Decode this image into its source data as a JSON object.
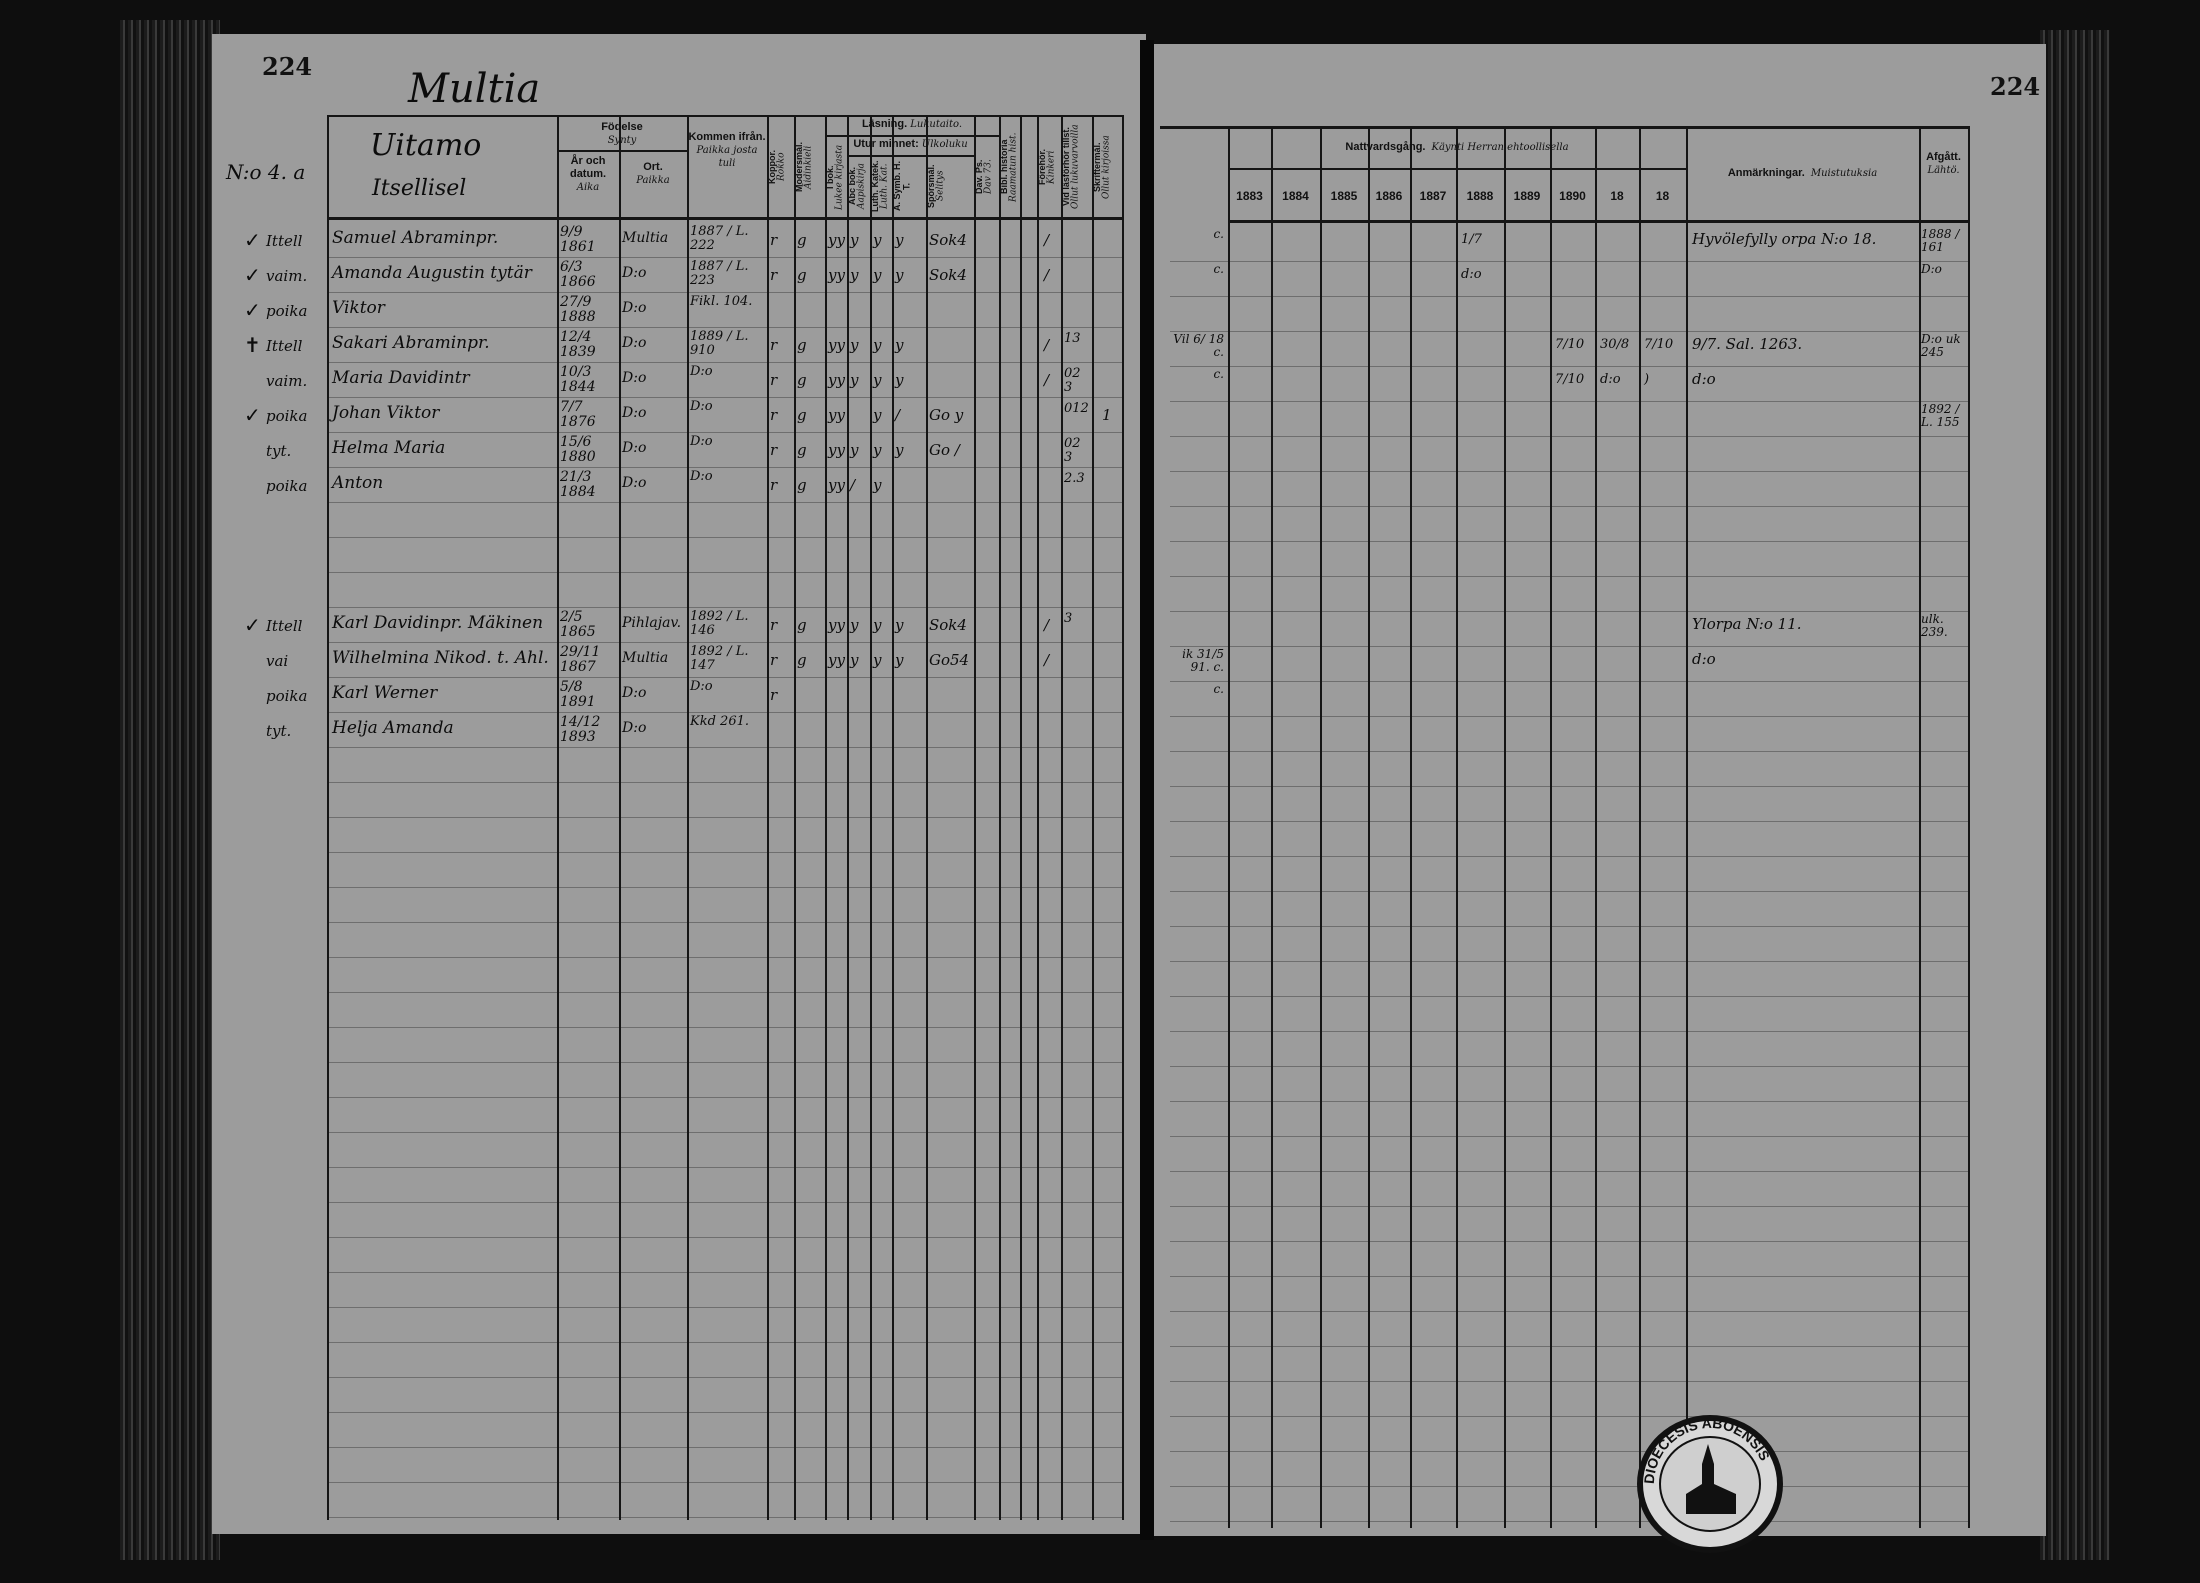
{
  "left_page": {
    "page_number": "224",
    "parish": "Multia",
    "household_number": "N:o 4. a",
    "village": "Uitamo",
    "category": "Itsellisel",
    "headers": {
      "birth": "Födelse",
      "birth_fi": "Synty",
      "date": "År och datum.",
      "date_fi": "Aika",
      "place": "Ort.",
      "place_fi": "Paikka",
      "came_from": "Kommen ifrån.",
      "came_from_fi": "Paikka josta tuli",
      "smallpox": "Koppor.",
      "smallpox_fi": "Rokko",
      "mother_tongue": "Modersmål.",
      "mother_tongue_fi": "Äidinkieli",
      "reading": "Läsning.",
      "reading_fi": "Lukutaito.",
      "from_book": "I bok.",
      "from_book_fi": "Lukee kirjasta",
      "by_heart": "Utur minnet:",
      "by_heart_fi": "Ulkoluku",
      "abc": "Abc bok.",
      "abc_fi": "Aapiskirja",
      "catechism": "Luth. Katek.",
      "catechism_fi": "Luth. Kat.",
      "symb": "A. Symb. H. T.",
      "questions": "Spörsmål.",
      "questions_fi": "Selitys",
      "psalm": "Dav. Ps.",
      "psalm_fi": "Dav 73.",
      "bible_history": "Bibl. historia",
      "bible_history_fi": "Raamatun hist.",
      "examination": "Förehör.",
      "examination_fi": "Kinkeri",
      "admitted": "Vid läsförhör tillst.",
      "admitted_fi": "Ollut lukuvarvoilla",
      "confession": "Skriftermål.",
      "confession_fi": "Ollut kirjoissa"
    },
    "families": [
      [
        {
          "mark": "✓",
          "role": "Ittell",
          "name": "Samuel Abraminpr.",
          "born": "9/9 1861",
          "place": "Multia",
          "came_from": "1887 / L. 222",
          "reading": [
            "r",
            "g",
            "yy",
            "y",
            "y",
            "y",
            "Sok4"
          ],
          "exam": "/",
          "admitted": ""
        },
        {
          "mark": "✓",
          "role": "vaim.",
          "name": "Amanda Augustin tytär",
          "born": "6/3 1866",
          "place": "D:o",
          "came_from": "1887 / L. 223",
          "reading": [
            "r",
            "g",
            "yy",
            "y",
            "y",
            "y",
            "Sok4"
          ],
          "exam": "/",
          "admitted": ""
        },
        {
          "mark": "✓",
          "role": "poika",
          "name": "Viktor",
          "born": "27/9 1888",
          "place": "D:o",
          "came_from": "Fikl. 104.",
          "reading": [],
          "exam": "",
          "admitted": ""
        },
        {
          "mark": "✝",
          "role": "Ittell",
          "name": "Sakari Abraminpr.",
          "born": "12/4 1839",
          "place": "D:o",
          "came_from": "1889 / L. 910",
          "reading": [
            "r",
            "g",
            "yy",
            "y",
            "y",
            "y"
          ],
          "exam": "/",
          "admitted": "13"
        },
        {
          "mark": "",
          "role": "vaim.",
          "name": "Maria Davidintr",
          "born": "10/3 1844",
          "place": "D:o",
          "came_from": "D:o",
          "reading": [
            "r",
            "g",
            "yy",
            "y",
            "y",
            "y"
          ],
          "exam": "/",
          "admitted": "02 3"
        },
        {
          "mark": "✓",
          "role": "poika",
          "name": "Johan Viktor",
          "born": "7/7 1876",
          "place": "D:o",
          "came_from": "D:o",
          "reading": [
            "r",
            "g",
            "yy",
            "",
            "y",
            "/",
            "Go y"
          ],
          "exam": "",
          "admitted": "012",
          "confession": "1"
        },
        {
          "mark": "",
          "role": "tyt.",
          "name": "Helma Maria",
          "born": "15/6 1880",
          "place": "D:o",
          "came_from": "D:o",
          "reading": [
            "r",
            "g",
            "yy",
            "y",
            "y",
            "y",
            "Go /"
          ],
          "exam": "",
          "admitted": "02 3"
        },
        {
          "mark": "",
          "role": "poika",
          "name": "Anton",
          "born": "21/3 1884",
          "place": "D:o",
          "came_from": "D:o",
          "reading": [
            "r",
            "g",
            "yy",
            "/",
            "y"
          ],
          "exam": "",
          "admitted": "2.3"
        }
      ],
      [
        {
          "mark": "✓",
          "role": "Ittell",
          "name": "Karl Davidinpr. Mäkinen",
          "born": "2/5 1865",
          "place": "Pihlajav.",
          "came_from": "1892 / L. 146",
          "reading": [
            "r",
            "g",
            "yy",
            "y",
            "y",
            "y",
            "Sok4"
          ],
          "exam": "/",
          "admitted": "3"
        },
        {
          "mark": "",
          "role": "vai",
          "name": "Wilhelmina Nikod. t. Ahl.",
          "born": "29/11 1867",
          "place": "Multia",
          "came_from": "1892 / L. 147",
          "reading": [
            "r",
            "g",
            "yy",
            "y",
            "y",
            "y",
            "Go54"
          ],
          "exam": "/",
          "admitted": ""
        },
        {
          "mark": "",
          "role": "poika",
          "name": "Karl Werner",
          "born": "5/8 1891",
          "place": "D:o",
          "came_from": "D:o",
          "reading": [
            "r"
          ],
          "exam": "",
          "admitted": ""
        },
        {
          "mark": "",
          "role": "tyt.",
          "name": "Helja Amanda",
          "born": "14/12 1893",
          "place": "D:o",
          "came_from": "Kkd 261.",
          "reading": [],
          "exam": "",
          "admitted": ""
        }
      ]
    ]
  },
  "right_page": {
    "page_number": "224",
    "headers": {
      "communion": "Nattvardsgång.",
      "communion_fi": "Käynti Herran ehtoollisella",
      "years": [
        "1883",
        "1884",
        "1885",
        "1886",
        "1887",
        "1888",
        "1889",
        "1890",
        "18",
        "18"
      ],
      "remarks": "Anmärkningar.",
      "remarks_fi": "Muistutuksia",
      "departed": "Afgått.",
      "departed_fi": "Lähtö."
    },
    "families": [
      [
        {
          "margin": "c.",
          "communion": [
            "",
            "",
            "",
            "",
            "",
            "1/7",
            "",
            "",
            "",
            ""
          ],
          "remarks": "Hyvölefylly orpa N:o 18.",
          "departed": "1888 / 161"
        },
        {
          "margin": "c.",
          "communion": [
            "",
            "",
            "",
            "",
            "",
            "d:o",
            "",
            "",
            "",
            ""
          ],
          "remarks": "",
          "departed": "D:o"
        },
        {
          "margin": "",
          "communion": [
            "",
            "",
            "",
            "",
            "",
            "",
            "",
            "",
            "",
            ""
          ],
          "remarks": "",
          "departed": ""
        },
        {
          "margin": "Vil 6/ 18 c.",
          "communion": [
            "",
            "",
            "",
            "",
            "",
            "",
            "",
            "7/10",
            "30/8",
            "7/10"
          ],
          "remarks": "9/7. Sal. 1263.",
          "departed": "D:o uk 245"
        },
        {
          "margin": "c.",
          "communion": [
            "",
            "",
            "",
            "",
            "",
            "",
            "",
            "7/10",
            "d:o",
            ")"
          ],
          "remarks": "d:o",
          "departed": ""
        },
        {
          "margin": "",
          "communion": [
            "",
            "",
            "",
            "",
            "",
            "",
            "",
            "",
            "",
            ""
          ],
          "remarks": "",
          "departed": "1892 / L. 155"
        },
        {
          "margin": "",
          "communion": [
            "",
            "",
            "",
            "",
            "",
            "",
            "",
            "",
            "",
            ""
          ],
          "remarks": "",
          "departed": ""
        },
        {
          "margin": "",
          "communion": [
            "",
            "",
            "",
            "",
            "",
            "",
            "",
            "",
            "",
            ""
          ],
          "remarks": "",
          "departed": ""
        }
      ],
      [
        {
          "margin": "",
          "communion": [
            "",
            "",
            "",
            "",
            "",
            "",
            "",
            "",
            "",
            ""
          ],
          "remarks": "Ylorpa N:o 11.",
          "departed": "ulk. 239."
        },
        {
          "margin": "ik 31/5 91. c.",
          "communion": [
            "",
            "",
            "",
            "",
            "",
            "",
            "",
            "",
            "",
            ""
          ],
          "remarks": "d:o",
          "departed": ""
        },
        {
          "margin": "c.",
          "communion": [
            "",
            "",
            "",
            "",
            "",
            "",
            "",
            "",
            "",
            ""
          ],
          "remarks": "",
          "departed": ""
        },
        {
          "margin": "",
          "communion": [
            "",
            "",
            "",
            "",
            "",
            "",
            "",
            "",
            "",
            ""
          ],
          "remarks": "",
          "departed": ""
        }
      ]
    ],
    "stamp": "DIOECESIS ABOENSIS"
  }
}
